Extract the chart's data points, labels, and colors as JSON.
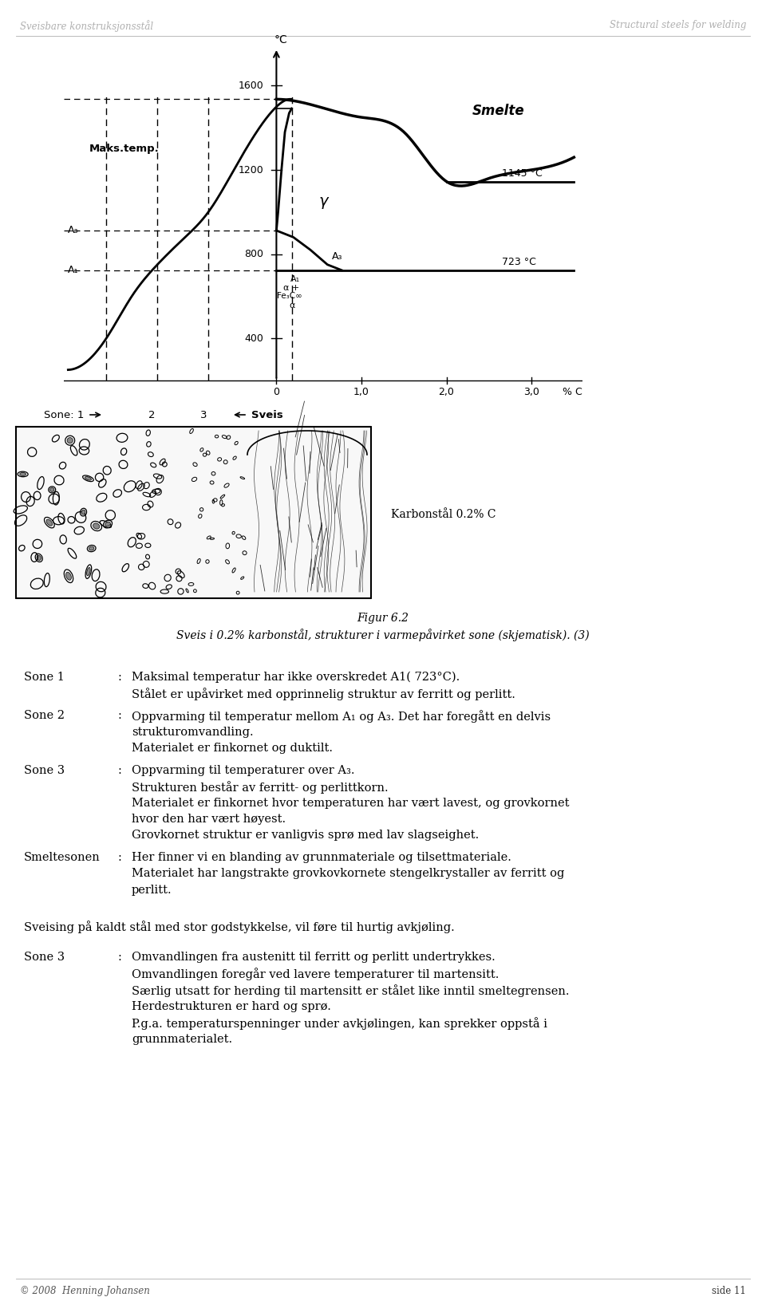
{
  "page_bg": "#ffffff",
  "header_left": "Sveisbare konstruksjonsstål",
  "header_right": "Structural steels for welding",
  "footer_left": "© 2008  Henning Johansen",
  "footer_right": "side 11",
  "fig_caption_line1": "Figur 6.2",
  "fig_caption_line2": "Sveis i 0.2% karbonstål, strukturer i varmepåvirket sone (skjematisk). (3)",
  "text_blocks": [
    {
      "label": "Sone 1",
      "colon": ":",
      "lines": [
        "Maksimal temperatur har ikke overskredet A1( 723°C).",
        "Stålet er upåvirket med opprinnelig struktur av ferritt og perlitt."
      ]
    },
    {
      "label": "Sone 2",
      "colon": ":",
      "lines": [
        "Oppvarming til temperatur mellom A₁ og A₃. Det har foregått en delvis",
        "strukturomvandling.",
        "Materialet er finkornet og duktilt."
      ]
    },
    {
      "label": "Sone 3",
      "colon": ":",
      "lines": [
        "Oppvarming til temperaturer over A₃.",
        "Strukturen består av ferritt- og perlittkorn.",
        "Materialet er finkornet hvor temperaturen har vært lavest, og grovkornet",
        "hvor den har vært høyest.",
        "Grovkornet struktur er vanligvis sprø med lav slagseighet."
      ]
    },
    {
      "label": "Smeltesonen",
      "colon": ":",
      "lines": [
        "Her finner vi en blanding av grunnmateriale og tilsettmateriale.",
        "Materialet har langstrakte grovkovkornete stengelkrystaller av ferritt og",
        "perlitt."
      ]
    }
  ],
  "cold_weld_text": "Sveising på kaldt stål med stor godstykkelse, vil føre til hurtig avkjøling.",
  "sone3_cold": {
    "label": "Sone 3",
    "colon": ":",
    "lines": [
      "Omvandlingen fra austenitt til ferritt og perlitt undertrykkes.",
      "Omvandlingen foregår ved lavere temperaturer til martensitt.",
      "Særlig utsatt for herding til martensitt er stålet like inntil smeltegrensen.",
      "Herdestrukturen er hard og sprø.",
      "P.g.a. temperaturspenninger under avkjølingen, kan sprekker oppstå i",
      "grunnmaterialet."
    ]
  }
}
